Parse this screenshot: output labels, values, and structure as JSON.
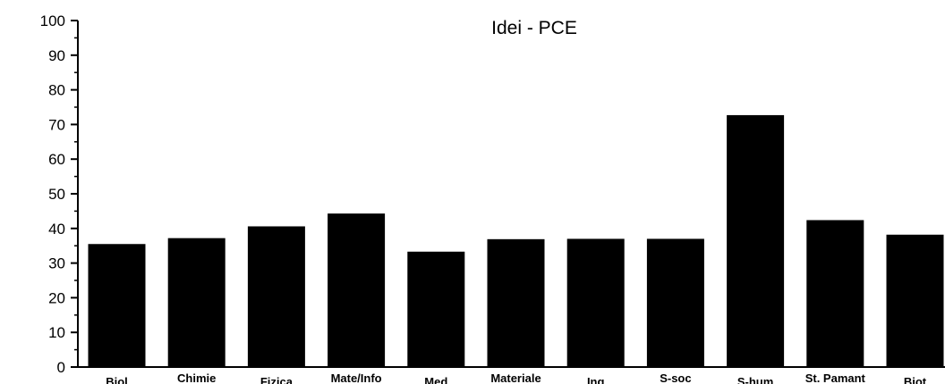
{
  "chart_data": {
    "type": "bar",
    "title": "Idei - PCE",
    "xlabel": "",
    "ylabel": "",
    "ylim": [
      0,
      100
    ],
    "yticks": [
      "0",
      "10",
      "20",
      "30",
      "40",
      "50",
      "60",
      "70",
      "80",
      "90",
      "100"
    ],
    "categories": [
      "Biol",
      "Chimie",
      "Fizica",
      "Mate/Info",
      "Med",
      "Materiale",
      "Ing",
      "S-soc",
      "S-hum",
      "St. Pamant",
      "Biot"
    ],
    "values": [
      35.5,
      37.2,
      40.6,
      44.3,
      33.3,
      36.9,
      37.0,
      37.0,
      72.7,
      42.4,
      38.2
    ],
    "bar_color": "#000000",
    "grid": false,
    "legend": "none"
  }
}
